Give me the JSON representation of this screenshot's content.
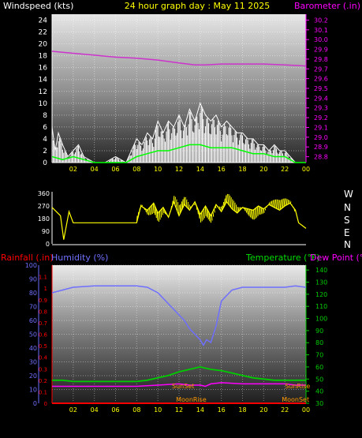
{
  "header": {
    "wind_label": "Windspeed (kts)",
    "title": "24 hour graph day : May 11 2025",
    "baro_label": "Barometer (.in)"
  },
  "colors": {
    "background": "#000000",
    "panel_top": "#e8e8e8",
    "panel_bottom": "#2a2a2a",
    "wind_axis": "#ffffff",
    "baro_axis": "#ff00ff",
    "time_ticks": "#ffff00",
    "wind_trace": "#ffffff",
    "gust_trace": "#00ff00",
    "baro_trace": "#cc33cc",
    "direction_trace": "#ffff00",
    "rain_axis": "#ff0000",
    "humidity": "#6f6fff",
    "temperature": "#00cc00",
    "dewpoint": "#ff00ff",
    "astro_text": "#ff9900"
  },
  "chart_data": [
    {
      "type": "line",
      "panel": "wind-barometer",
      "x_ticks": [
        "02",
        "04",
        "06",
        "08",
        "10",
        "12",
        "14",
        "16",
        "18",
        "20",
        "22",
        "00"
      ],
      "x_range_hours": [
        0,
        24
      ],
      "left_axis": {
        "label": "Windspeed (kts)",
        "ticks": [
          0,
          2,
          4,
          6,
          8,
          10,
          12,
          14,
          16,
          18,
          20,
          22,
          24
        ],
        "ylim": [
          0,
          25
        ]
      },
      "right_axis": {
        "label": "Barometer (.in)",
        "ticks": [
          28.8,
          28.9,
          29.0,
          29.1,
          29.2,
          29.3,
          29.4,
          29.5,
          29.6,
          29.7,
          29.8,
          29.9,
          30.0,
          30.1,
          30.2
        ],
        "ylim": [
          28.74,
          30.26
        ]
      },
      "series": [
        {
          "key": "barometer",
          "x": [
            0,
            2,
            4,
            6,
            8,
            10,
            12,
            13.5,
            14.5,
            16,
            18,
            20,
            22,
            24
          ],
          "values": [
            29.88,
            29.86,
            29.84,
            29.82,
            29.81,
            29.79,
            29.76,
            29.74,
            29.74,
            29.75,
            29.75,
            29.75,
            29.74,
            29.73
          ]
        },
        {
          "key": "wind_max",
          "x": [
            0,
            0.3,
            0.6,
            1,
            1.5,
            2,
            2.5,
            3,
            4,
            5,
            6,
            7,
            7.5,
            8,
            8.5,
            9,
            9.5,
            10,
            10.5,
            11,
            11.5,
            12,
            12.5,
            13,
            13.5,
            14,
            14.5,
            15,
            15.5,
            16,
            16.5,
            17,
            17.5,
            18,
            18.5,
            19,
            19.5,
            20,
            20.5,
            21,
            21.5,
            22,
            22.5,
            23,
            24
          ],
          "values": [
            6,
            2,
            5,
            3,
            1,
            2,
            3,
            1,
            0,
            0,
            1,
            0,
            2,
            4,
            3,
            5,
            4,
            7,
            5,
            7,
            6,
            8,
            6,
            9,
            7,
            10,
            8,
            7,
            8,
            6,
            7,
            6,
            5,
            5,
            4,
            4,
            3,
            3,
            2,
            3,
            2,
            2,
            1,
            0,
            0
          ]
        },
        {
          "key": "wind_avg",
          "x": [
            0,
            1,
            2,
            3,
            4,
            6,
            7,
            7.5,
            8,
            9,
            10,
            11,
            12,
            13,
            14,
            15,
            16,
            17,
            18,
            19,
            20,
            21,
            22,
            23,
            24
          ],
          "values": [
            1,
            0.5,
            1,
            0.5,
            0,
            0,
            0,
            0.5,
            1,
            1.5,
            2,
            2,
            2.5,
            3,
            3,
            2.5,
            2.5,
            2.5,
            2,
            1.5,
            1.5,
            1,
            1,
            0,
            0
          ]
        }
      ]
    },
    {
      "type": "line",
      "panel": "wind-direction",
      "x_range_hours": [
        0,
        24
      ],
      "y_ticks": [
        0,
        90,
        180,
        270,
        360
      ],
      "ylim": [
        0,
        360
      ],
      "compass_labels": [
        "W",
        "N",
        "S",
        "E",
        "N"
      ],
      "series": [
        {
          "key": "direction",
          "x": [
            0,
            0.8,
            1.1,
            1.6,
            2,
            6,
            7,
            8,
            8.4,
            9,
            9.6,
            10,
            10.5,
            11,
            11.5,
            12,
            12.5,
            13,
            13.5,
            14,
            14.5,
            15,
            15.5,
            16,
            16.5,
            17,
            17.5,
            18,
            18.5,
            19,
            19.5,
            20,
            20.5,
            21,
            21.5,
            22,
            22.5,
            23,
            23.3,
            24
          ],
          "values": [
            260,
            200,
            30,
            230,
            150,
            150,
            150,
            150,
            270,
            240,
            290,
            220,
            260,
            190,
            300,
            200,
            280,
            240,
            300,
            210,
            270,
            200,
            280,
            230,
            300,
            250,
            220,
            260,
            250,
            240,
            270,
            250,
            280,
            260,
            240,
            270,
            290,
            240,
            150,
            110
          ]
        }
      ]
    },
    {
      "type": "line",
      "panel": "rain-humidity-temperature",
      "x_ticks": [
        "02",
        "04",
        "06",
        "08",
        "10",
        "12",
        "14",
        "16",
        "18",
        "20",
        "22",
        "00"
      ],
      "x_range_hours": [
        0,
        24
      ],
      "rain_axis": {
        "label": "Rainfall (.in)",
        "ticks": [
          "0",
          "0.1",
          "0.2",
          "0.3",
          "0.4",
          "0.5",
          "0.6",
          "0.7",
          "0.8",
          "0.9",
          "1",
          "1.1"
        ],
        "ylim": [
          0,
          1.2
        ]
      },
      "humidity_axis": {
        "label": "Humidity (%)",
        "ticks": [
          0,
          10,
          20,
          30,
          40,
          50,
          60,
          70,
          80,
          90,
          100
        ],
        "ylim": [
          0,
          100
        ]
      },
      "temperature_axis": {
        "label": "Temperature (°F)",
        "ticks": [
          30,
          40,
          50,
          60,
          70,
          80,
          90,
          100,
          110,
          120,
          130,
          140
        ],
        "ylim": [
          30,
          144
        ]
      },
      "dewpoint_label": "Dew Point (°F)",
      "series": [
        {
          "key": "humidity",
          "x": [
            0,
            1,
            2,
            4,
            6,
            8,
            9,
            10,
            11,
            12,
            12.5,
            13,
            13.5,
            14,
            14.3,
            14.6,
            15,
            15.5,
            16,
            17,
            18,
            20,
            22,
            23,
            24
          ],
          "values": [
            80,
            82,
            84,
            85,
            85,
            85,
            84,
            80,
            72,
            64,
            60,
            54,
            50,
            46,
            42,
            46,
            44,
            56,
            74,
            82,
            84,
            84,
            84,
            85,
            84
          ]
        },
        {
          "key": "temperature",
          "x": [
            0,
            1,
            2,
            4,
            6,
            8,
            9,
            10,
            11,
            12,
            13,
            14,
            14.5,
            15,
            16,
            17,
            18,
            19,
            20,
            21,
            22,
            23,
            24
          ],
          "values": [
            49,
            49,
            48,
            48,
            48,
            48,
            49,
            51,
            53,
            56,
            58,
            60,
            59,
            58,
            57,
            55,
            53,
            51,
            50,
            49,
            49,
            49,
            49
          ]
        },
        {
          "key": "dewpoint",
          "x": [
            0,
            2,
            4,
            6,
            8,
            10,
            12,
            13,
            14,
            14.5,
            15,
            16,
            18,
            20,
            22,
            23,
            24
          ],
          "values": [
            44,
            44,
            44,
            44,
            44,
            45,
            46,
            45,
            45,
            44,
            46,
            47,
            46,
            46,
            46,
            45,
            45
          ]
        },
        {
          "key": "rain",
          "x": [
            0,
            24
          ],
          "values": [
            0,
            0
          ]
        }
      ],
      "markers": {
        "sunset": {
          "label": "SunSet",
          "time": 8.5
        },
        "sunrise": {
          "label": "SunRise",
          "time": 22.3
        },
        "moonrise": {
          "label": "MoonRise",
          "time": 13.5
        },
        "moonset": {
          "label": "MoonSet",
          "time": 22.3
        }
      }
    }
  ]
}
